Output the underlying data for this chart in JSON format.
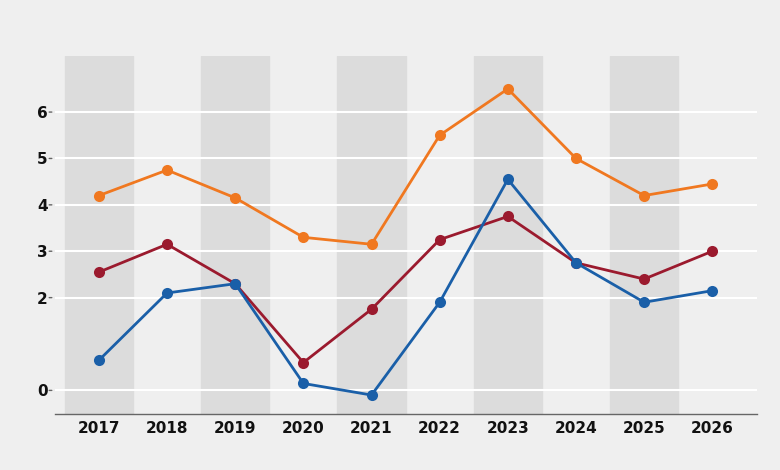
{
  "years": [
    2017,
    2018,
    2019,
    2020,
    2021,
    2022,
    2023,
    2024,
    2025,
    2026
  ],
  "orange": [
    4.2,
    4.75,
    4.15,
    3.3,
    3.15,
    5.5,
    6.5,
    5.0,
    4.2,
    4.45
  ],
  "red": [
    2.55,
    3.15,
    2.3,
    0.6,
    1.75,
    3.25,
    3.75,
    2.75,
    2.4,
    3.0
  ],
  "blue": [
    0.65,
    2.1,
    2.3,
    0.15,
    -0.1,
    1.9,
    4.55,
    2.75,
    1.9,
    2.15
  ],
  "orange_color": "#f07820",
  "red_color": "#9b1a2e",
  "blue_color": "#1a5fa8",
  "bg_stripe_color": "#dcdcdc",
  "bg_base_color": "#efefef",
  "top_bar_color": "#ffffff",
  "ylim": [
    -0.5,
    7.2
  ],
  "yticks": [
    0,
    2,
    3,
    4,
    5,
    6
  ],
  "marker_size": 8,
  "linewidth": 2.0
}
